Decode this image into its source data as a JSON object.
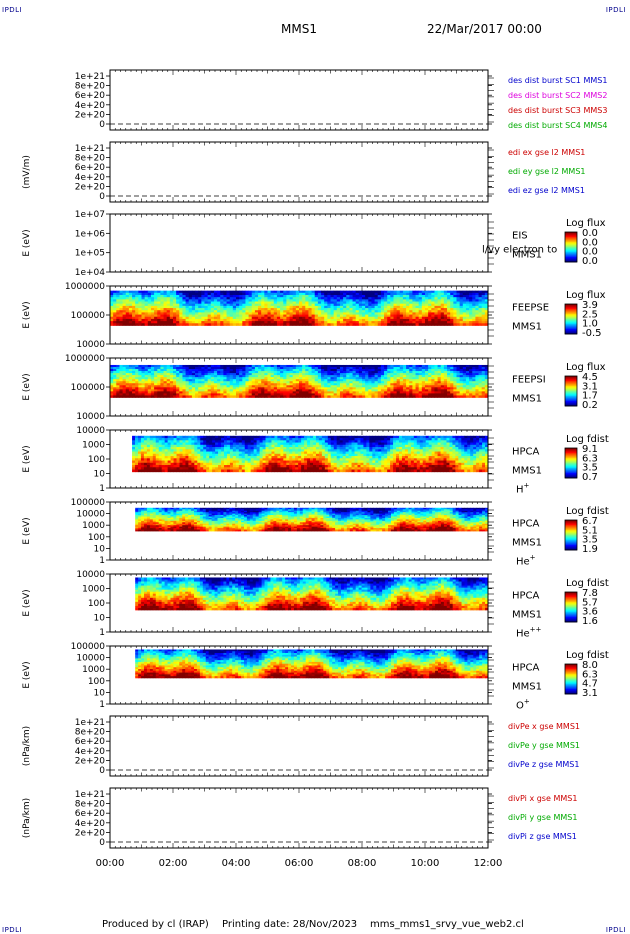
{
  "corner_label": "IPDLI",
  "header": {
    "spacecraft": "MMS1",
    "datetime": "22/Mar/2017 00:00"
  },
  "footer": {
    "produced_by": "Produced by cl (IRAP)",
    "printing_date": "Printing date: 28/Nov/2023",
    "script_name": "mms_mms1_srvy_vue_web2.cl"
  },
  "chart_data": {
    "type": "heatmap",
    "time_axis": {
      "start": "00:00",
      "end": "12:00",
      "tick_labels": [
        "00:00",
        "02:00",
        "04:00",
        "06:00",
        "08:00",
        "10:00",
        "12:00"
      ]
    },
    "panels": [
      {
        "id": "des",
        "kind": "line",
        "ylabel": "",
        "ytick_labels": [
          "1e+21",
          "8e+20",
          "6e+20",
          "4e+20",
          "2e+20",
          "0"
        ],
        "ylim": [
          0,
          1e+21
        ],
        "zero_dashed": true,
        "legend": [
          {
            "text": "des dist burst SC1 MMS1",
            "color": "#0000cc"
          },
          {
            "text": "des dist burst SC2 MMS2",
            "color": "#dd00dd"
          },
          {
            "text": "des dist burst SC3 MMS3",
            "color": "#cc0000"
          },
          {
            "text": "des dist burst SC4 MMS4",
            "color": "#00aa00"
          }
        ]
      },
      {
        "id": "edi",
        "kind": "line",
        "ylabel": "(mV/m)",
        "ytick_labels": [
          "1e+21",
          "8e+20",
          "6e+20",
          "4e+20",
          "2e+20",
          "0"
        ],
        "ylim": [
          0,
          1e+21
        ],
        "zero_dashed": true,
        "legend": [
          {
            "text": "edi ex gse l2 MMS1",
            "color": "#cc0000"
          },
          {
            "text": "edi ey gse l2 MMS1",
            "color": "#00aa00"
          },
          {
            "text": "edi ez gse l2 MMS1",
            "color": "#0000cc"
          }
        ]
      },
      {
        "id": "eis",
        "kind": "spectrogram",
        "ylabel": "E (eV)",
        "ytick_labels": [
          "1e+07",
          "1e+06",
          "1e+05",
          "1e+04"
        ],
        "ylim": [
          10000.0,
          10000000.0
        ],
        "scale": "log",
        "instrument": "EIS",
        "probe": "MMS1",
        "species": "",
        "overlay_text": "l/vy electron to",
        "cbar_title": "Log flux",
        "cbar_labels": [
          "0.0",
          "0.0",
          "0.0",
          "0.0"
        ],
        "has_data": false
      },
      {
        "id": "feeps_e",
        "kind": "spectrogram",
        "ylabel": "E (eV)",
        "ytick_labels": [
          "1000000",
          "100000",
          "10000"
        ],
        "ylim": [
          10000.0,
          1000000.0
        ],
        "scale": "log",
        "instrument": "FEEPSE",
        "probe": "MMS1",
        "species": "",
        "cbar_title": "Log flux",
        "cbar_labels": [
          "3.9",
          "2.5",
          "1.0",
          "-0.5"
        ],
        "has_data": true,
        "data_start": "00:00",
        "data_end": "12:00",
        "fill_top": 0.08,
        "fill_bottom": 0.68
      },
      {
        "id": "feeps_i",
        "kind": "spectrogram",
        "ylabel": "E (eV)",
        "ytick_labels": [
          "1000000",
          "100000",
          "10000"
        ],
        "ylim": [
          10000.0,
          1000000.0
        ],
        "scale": "log",
        "instrument": "FEEPSI",
        "probe": "MMS1",
        "species": "",
        "cbar_title": "Log flux",
        "cbar_labels": [
          "4.5",
          "3.1",
          "1.7",
          "0.2"
        ],
        "has_data": true,
        "data_start": "00:00",
        "data_end": "12:00",
        "fill_top": 0.12,
        "fill_bottom": 0.68
      },
      {
        "id": "hpca_h",
        "kind": "spectrogram",
        "ylabel": "E (eV)",
        "ytick_labels": [
          "10000",
          "1000",
          "100",
          "10",
          "1"
        ],
        "ylim": [
          1,
          40000.0
        ],
        "scale": "log",
        "instrument": "HPCA",
        "probe": "MMS1",
        "species": "H",
        "species_sup": "+",
        "cbar_title": "Log fdist",
        "cbar_labels": [
          "9.1",
          "6.3",
          "3.5",
          "0.7"
        ],
        "has_data": true,
        "data_start": "00:42",
        "data_end": "12:00",
        "fill_top": 0.1,
        "fill_bottom": 0.72
      },
      {
        "id": "hpca_he1",
        "kind": "spectrogram",
        "ylabel": "E (eV)",
        "ytick_labels": [
          "100000",
          "10000",
          "1000",
          "100",
          "10",
          "1"
        ],
        "ylim": [
          1,
          100000.0
        ],
        "scale": "log",
        "instrument": "HPCA",
        "probe": "MMS1",
        "species": "He",
        "species_sup": "+",
        "cbar_title": "Log fdist",
        "cbar_labels": [
          "6.7",
          "5.1",
          "3.5",
          "1.9"
        ],
        "has_data": true,
        "data_start": "00:48",
        "data_end": "12:00",
        "fill_top": 0.1,
        "fill_bottom": 0.5
      },
      {
        "id": "hpca_he2",
        "kind": "spectrogram",
        "ylabel": "E (eV)",
        "ytick_labels": [
          "10000",
          "1000",
          "100",
          "10",
          "1"
        ],
        "ylim": [
          1,
          40000.0
        ],
        "scale": "log",
        "instrument": "HPCA",
        "probe": "MMS1",
        "species": "He",
        "species_sup": "++",
        "cbar_title": "Log fdist",
        "cbar_labels": [
          "7.8",
          "5.7",
          "3.6",
          "1.6"
        ],
        "has_data": true,
        "data_start": "00:48",
        "data_end": "12:00",
        "fill_top": 0.06,
        "fill_bottom": 0.62
      },
      {
        "id": "hpca_o",
        "kind": "spectrogram",
        "ylabel": "E (eV)",
        "ytick_labels": [
          "100000",
          "10000",
          "1000",
          "100",
          "10",
          "1"
        ],
        "ylim": [
          1,
          100000.0
        ],
        "scale": "log",
        "instrument": "HPCA",
        "probe": "MMS1",
        "species": "O",
        "species_sup": "+",
        "cbar_title": "Log fdist",
        "cbar_labels": [
          "8.0",
          "6.3",
          "4.7",
          "3.1"
        ],
        "has_data": true,
        "data_start": "00:48",
        "data_end": "12:00",
        "fill_top": 0.06,
        "fill_bottom": 0.55
      },
      {
        "id": "divpe",
        "kind": "line",
        "ylabel": "(nPa/km)",
        "ytick_labels": [
          "1e+21",
          "8e+20",
          "6e+20",
          "4e+20",
          "2e+20",
          "0"
        ],
        "ylim": [
          0,
          1e+21
        ],
        "zero_dashed": true,
        "legend": [
          {
            "text": "divPe x gse MMS1",
            "color": "#cc0000"
          },
          {
            "text": "divPe y gse MMS1",
            "color": "#00aa00"
          },
          {
            "text": "divPe z gse MMS1",
            "color": "#0000cc"
          }
        ]
      },
      {
        "id": "divpi",
        "kind": "line",
        "ylabel": "(nPa/km)",
        "ytick_labels": [
          "1e+21",
          "8e+20",
          "6e+20",
          "4e+20",
          "2e+20",
          "0"
        ],
        "ylim": [
          0,
          1e+21
        ],
        "zero_dashed": true,
        "legend": [
          {
            "text": "divPi x gse MMS1",
            "color": "#cc0000"
          },
          {
            "text": "divPi y gse MMS1",
            "color": "#00aa00"
          },
          {
            "text": "divPi z gse MMS1",
            "color": "#0000cc"
          }
        ]
      }
    ]
  }
}
